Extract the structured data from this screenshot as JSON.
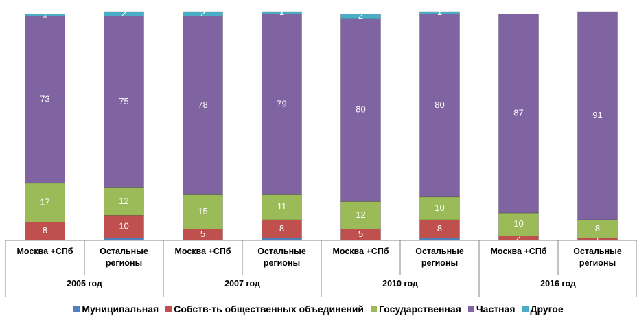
{
  "chart_data": {
    "type": "stacked_bar",
    "categories": [
      "Москва +СПб",
      "Остальные регионы",
      "Москва +СПб",
      "Остальные регионы",
      "Москва +СПб",
      "Остальные регионы",
      "Москва +СПб",
      "Остальные регионы"
    ],
    "groups": [
      "2005 год",
      "2007 год",
      "2010 год",
      "2016 год"
    ],
    "series": [
      {
        "name": "Муниципальная",
        "color": "#4f81bd",
        "data_labels": false,
        "values": [
          0,
          1,
          0,
          1,
          0,
          1,
          0,
          0
        ]
      },
      {
        "name": "Собств-ть общественных объединений",
        "color": "#c0504d",
        "data_labels": true,
        "values": [
          8,
          10,
          5,
          8,
          5,
          8,
          2,
          1
        ]
      },
      {
        "name": "Государственная",
        "color": "#9bbb59",
        "data_labels": true,
        "values": [
          17,
          12,
          15,
          11,
          12,
          10,
          10,
          8
        ]
      },
      {
        "name": "Частная",
        "color": "#8064a2",
        "data_labels": true,
        "values": [
          73,
          75,
          78,
          79,
          80,
          80,
          87,
          91
        ]
      },
      {
        "name": "Другое",
        "color": "#4bacc6",
        "data_labels": true,
        "values": [
          1,
          2,
          2,
          1,
          2,
          1,
          0,
          0
        ]
      }
    ],
    "ylim": [
      0,
      100
    ],
    "legend": "bottom"
  }
}
